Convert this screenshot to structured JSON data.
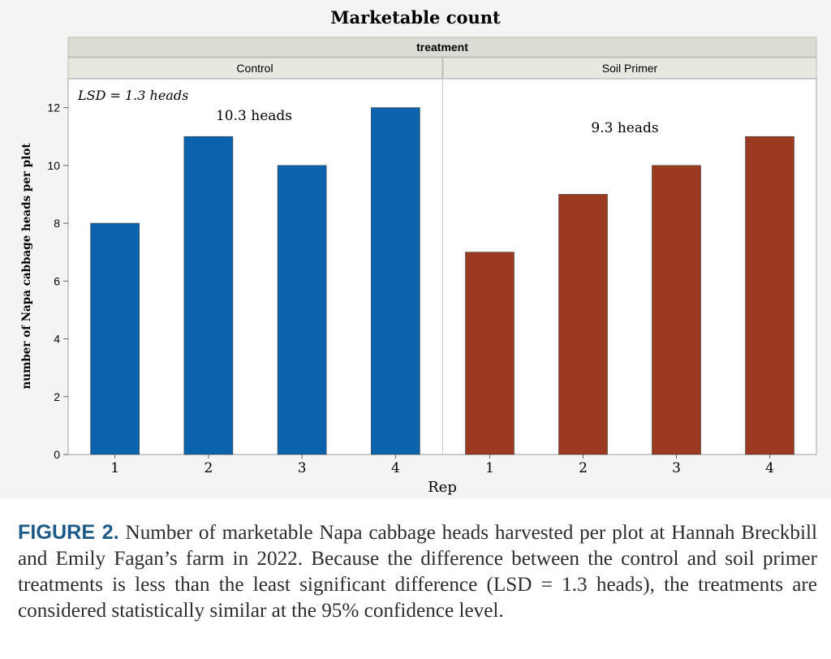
{
  "chart_data": {
    "type": "bar",
    "title": "Marketable count",
    "group_header": "treatment",
    "xlabel": "Rep",
    "ylabel": "number of Napa cabbage heads per plot",
    "ylim": [
      0,
      13
    ],
    "yticks": [
      0,
      2,
      4,
      6,
      8,
      10,
      12
    ],
    "grid": false,
    "legend": "none",
    "annotation": "LSD = 1.3 heads",
    "panels": [
      {
        "name": "Control",
        "color": "#0b63ad",
        "categories": [
          "1",
          "2",
          "3",
          "4"
        ],
        "values": [
          8,
          11,
          10,
          12
        ],
        "mean_label": "10.3 heads"
      },
      {
        "name": "Soil Primer",
        "color": "#9b3a20",
        "categories": [
          "1",
          "2",
          "3",
          "4"
        ],
        "values": [
          7,
          9,
          10,
          11
        ],
        "mean_label": "9.3 heads"
      }
    ]
  },
  "caption": {
    "label": "FIGURE 2.",
    "text": "Number of marketable Napa cabbage heads harvested per plot at Hannah Breckbill and Emily Fagan’s farm in 2022. Because the difference between the control and soil primer treatments is less than the least significant difference (LSD = 1.3 heads), the treatments are considered statistically similar at the 95% confidence level."
  }
}
